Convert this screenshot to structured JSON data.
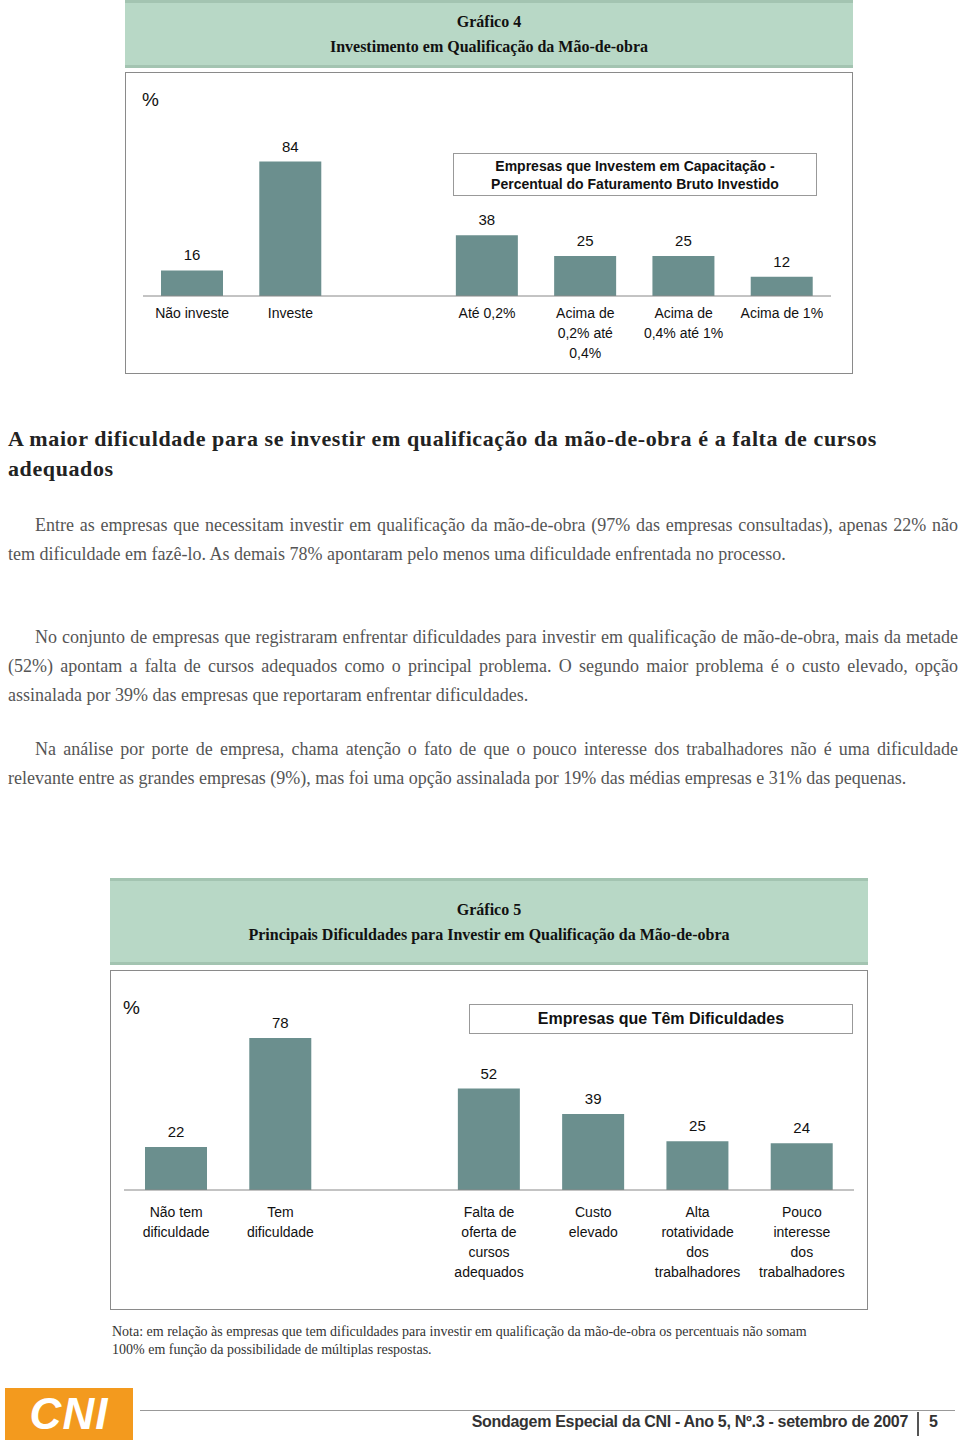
{
  "chart_data": [
    {
      "type": "bar",
      "title": "Gráfico 4",
      "subtitle": "Investimento em Qualificação da Mão-de-obra",
      "y_label": "%",
      "annotation": "Empresas que Investem em Capacitação - Percentual do Faturamento Bruto Investido",
      "categories": [
        "Não investe",
        "Investe",
        null,
        "Até 0,2%",
        "Acima de 0,2% até 0,4%",
        "Acima de 0,4% até 1%",
        "Acima de 1%"
      ],
      "values": [
        16,
        84,
        null,
        38,
        25,
        25,
        12
      ],
      "color": "#6b8f8e",
      "ylim": [
        0,
        100
      ],
      "data_labels": true,
      "tick_labels": "x"
    },
    {
      "type": "bar",
      "title": "Gráfico 5",
      "subtitle": "Principais Dificuldades para Investir em Qualificação da Mão-de-obra",
      "y_label": "%",
      "annotation": "Empresas que Têm Dificuldades",
      "categories": [
        "Não tem dificuldade",
        "Tem dificuldade",
        null,
        "Falta de oferta de cursos adequados",
        "Custo elevado",
        "Alta rotatividade dos trabalhadores",
        "Pouco interesse dos trabalhadores"
      ],
      "values": [
        22,
        78,
        null,
        52,
        39,
        25,
        24
      ],
      "color": "#6b8f8e",
      "ylim": [
        0,
        100
      ],
      "data_labels": true,
      "tick_labels": "x"
    }
  ],
  "heading": "A maior dificuldade para se investir em qualificação da mão-de-obra é a falta de cursos adequados",
  "paragraphs": [
    "Entre as empresas que necessitam investir em qualificação da mão-de-obra (97% das empresas consultadas), apenas 22% não tem dificuldade em fazê-lo. As demais 78% apontaram pelo menos uma dificuldade enfrentada no processo.",
    "No conjunto de empresas que registraram enfrentar dificuldades para investir em qualificação de mão-de-obra, mais da metade (52%) apontam a falta de cursos adequados como o principal problema. O segundo maior problema é o custo elevado, opção assinalada por 39% das empresas que reportaram enfrentar dificuldades.",
    "Na análise por porte de empresa, chama atenção o fato de que o pouco interesse dos trabalhadores não é uma dificuldade relevante entre as grandes empresas (9%), mas foi uma opção assinalada por 19% das médias empresas e 31% das pequenas."
  ],
  "note": "Nota: em relação às empresas que tem dificuldades para investir em qualificação da mão-de-obra os percentuais não somam 100% em função da possibilidade de múltiplas respostas.",
  "footer": {
    "logo": "CNI",
    "text": "Sondagem Especial da CNI - Ano 5, Nº.3 - setembro de 2007",
    "page": "5"
  }
}
